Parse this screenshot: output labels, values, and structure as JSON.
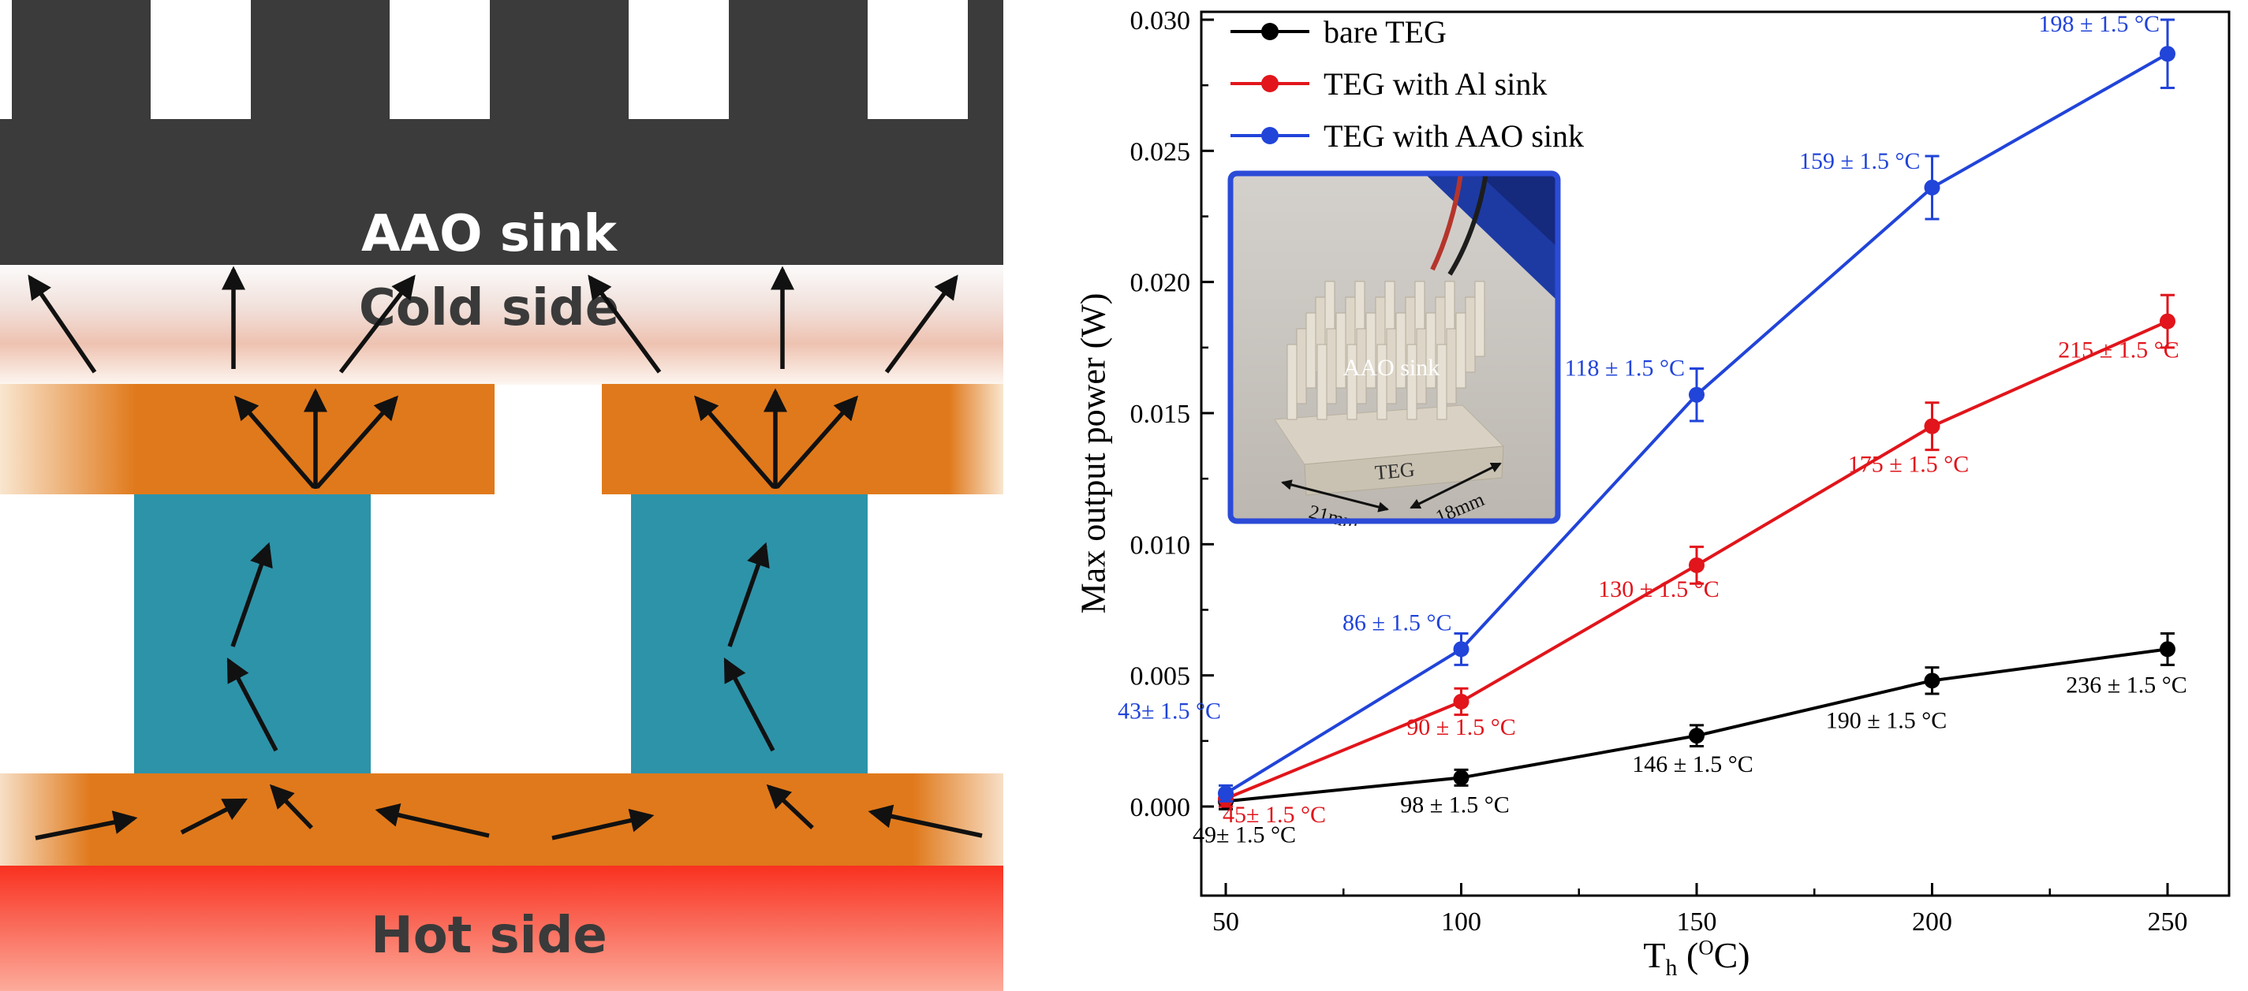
{
  "left_panel": {
    "aao_sink_label": "AAO sink",
    "cold_side_label": "Cold side",
    "hot_side_label": "Hot side",
    "colors": {
      "sink_dark": "#3b3b3b",
      "ceramic_orange": "#e0791b",
      "leg_teal": "#2d93a9",
      "hot_red": "#f93120"
    }
  },
  "inset": {
    "sink_label": "AAO sink",
    "teg_label": "TEG",
    "dim_left": "21mm",
    "dim_right": "18mm",
    "border_color": "#2b4bd7"
  },
  "chart_data": {
    "type": "line",
    "title": "",
    "ylabel": "Max output power (W)",
    "xlabel": {
      "main": "T",
      "sub": "h",
      "open": " (",
      "sup": "O",
      "close": "C)"
    },
    "x": [
      50,
      100,
      150,
      200,
      250
    ],
    "xticks": [
      "50",
      "100",
      "150",
      "200",
      "250"
    ],
    "ytick_values": [
      0,
      0.005,
      0.01,
      0.015,
      0.02,
      0.025,
      0.03
    ],
    "yticks": [
      "0.000",
      "0.005",
      "0.010",
      "0.015",
      "0.020",
      "0.025",
      "0.030"
    ],
    "xlim": [
      45,
      263
    ],
    "ylim": [
      -0.0034,
      0.03
    ],
    "grid": false,
    "legend_position": "top-left",
    "series": [
      {
        "name": "bare TEG",
        "color": "#000000",
        "values": [
          0.0002,
          0.0011,
          0.0027,
          0.0048,
          0.006
        ],
        "errors": [
          0.0003,
          0.0003,
          0.0004,
          0.0005,
          0.0006
        ],
        "point_labels": [
          "49± 1.5 °C",
          "98 ± 1.5 °C",
          "146 ± 1.5 °C",
          "190 ± 1.5 °C",
          "236 ± 1.5 °C"
        ]
      },
      {
        "name": "TEG with Al sink",
        "color": "#e1151b",
        "values": [
          0.0003,
          0.004,
          0.0092,
          0.0145,
          0.0185
        ],
        "errors": [
          0.0003,
          0.0005,
          0.0007,
          0.0009,
          0.001
        ],
        "point_labels": [
          "45± 1.5 °C",
          "90 ± 1.5 °C",
          "130 ± 1.5 °C",
          "175 ± 1.5 °C",
          "215 ± 1.5 °C"
        ]
      },
      {
        "name": "TEG with AAO sink",
        "color": "#2144d9",
        "values": [
          0.0005,
          0.006,
          0.0157,
          0.0236,
          0.0287
        ],
        "errors": [
          0.0003,
          0.0006,
          0.001,
          0.0012,
          0.0013
        ],
        "point_labels": [
          "43± 1.5 °C",
          "86 ± 1.5 °C",
          "118 ± 1.5 °C",
          "159 ± 1.5 °C",
          "198 ± 1.5 °C"
        ]
      }
    ]
  }
}
